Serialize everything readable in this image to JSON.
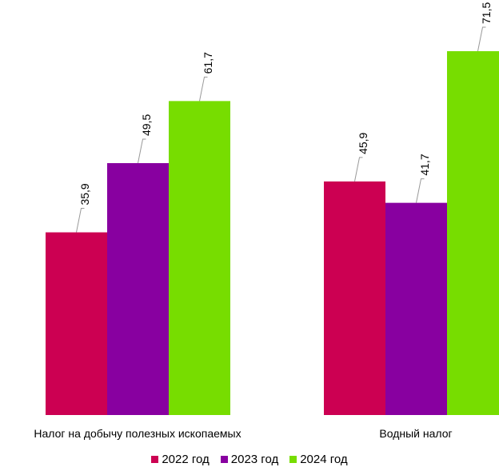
{
  "chart_data": {
    "type": "bar",
    "title": "",
    "xlabel": "",
    "ylabel": "",
    "categories": [
      "Налог на добычу полезных ископаемых",
      "Водный налог"
    ],
    "series": [
      {
        "name": "2022 год",
        "color": "#CC0052",
        "values": [
          35.9,
          45.9
        ],
        "labels": [
          "35,9",
          "45,9"
        ]
      },
      {
        "name": "2023 год",
        "color": "#8800A0",
        "values": [
          49.5,
          41.7
        ],
        "labels": [
          "49,5",
          "41,7"
        ]
      },
      {
        "name": "2024 год",
        "color": "#77DD00",
        "values": [
          61.7,
          71.5
        ],
        "labels": [
          "61,7",
          "71,5"
        ]
      }
    ],
    "ylim": [
      0,
      71.5
    ],
    "grid": false,
    "legend": "bottom"
  }
}
